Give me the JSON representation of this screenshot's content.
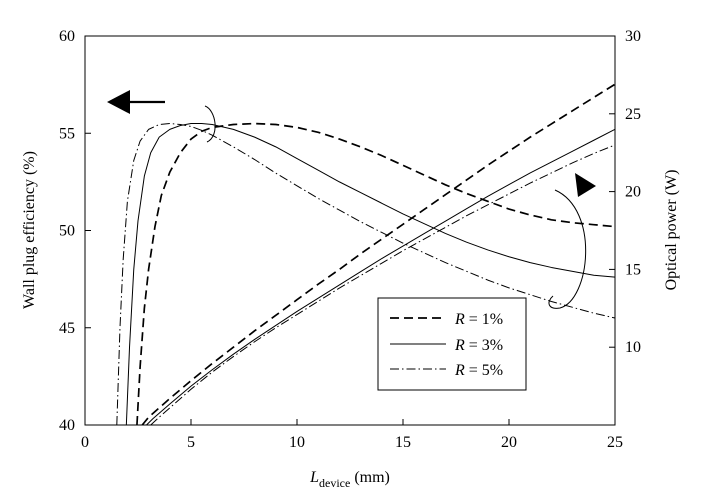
{
  "chart_data": {
    "type": "line",
    "xlabel": {
      "main": "L",
      "sub": "device",
      "unit": " (mm)"
    },
    "ylabel_left": "Wall plug efficiency (%)",
    "ylabel_right": "Optical power (W)",
    "xlim": [
      0,
      25
    ],
    "ylim_left": [
      40,
      60
    ],
    "ylim_right": [
      5,
      30
    ],
    "x_ticks": [
      "0",
      "5",
      "10",
      "15",
      "20",
      "25"
    ],
    "y_left_ticks": [
      "40",
      "45",
      "50",
      "55",
      "60"
    ],
    "y_right_ticks": [
      "10",
      "15",
      "20",
      "25",
      "30"
    ],
    "grid": false,
    "legend_position": "bottom-center",
    "legend": [
      {
        "prefix": "R",
        "text": " = 1%"
      },
      {
        "prefix": "R",
        "text": " = 3%"
      },
      {
        "prefix": "R",
        "text": " = 5%"
      }
    ],
    "series": [
      {
        "legend_index": 0,
        "style": "dashed",
        "axis": "left",
        "x": [
          2.45,
          2.6,
          2.8,
          3.0,
          3.3,
          3.6,
          4.0,
          4.5,
          5.0,
          5.5,
          6.0,
          7.0,
          8.0,
          9.0,
          10.0,
          11.0,
          12.0,
          13.0,
          14.0,
          15.0,
          16.0,
          17.0,
          18.0,
          19.0,
          20.0,
          21.0,
          22.0,
          23.0,
          24.0,
          25.0
        ],
        "y": [
          40.0,
          43.0,
          46.0,
          48.0,
          50.2,
          51.8,
          53.0,
          54.0,
          54.7,
          55.1,
          55.3,
          55.45,
          55.5,
          55.45,
          55.3,
          55.05,
          54.7,
          54.3,
          53.85,
          53.35,
          52.85,
          52.35,
          51.9,
          51.5,
          51.1,
          50.8,
          50.55,
          50.4,
          50.3,
          50.2
        ]
      },
      {
        "legend_index": 1,
        "style": "solid",
        "axis": "left",
        "x": [
          1.95,
          2.1,
          2.3,
          2.5,
          2.8,
          3.1,
          3.5,
          4.0,
          4.5,
          5.0,
          5.5,
          6.0,
          7.0,
          8.0,
          9.0,
          10.0,
          11.0,
          12.0,
          13.0,
          14.0,
          15.0,
          16.0,
          17.0,
          18.0,
          19.0,
          20.0,
          21.0,
          22.0,
          23.0,
          24.0,
          25.0
        ],
        "y": [
          40.0,
          44.0,
          48.0,
          50.5,
          52.8,
          54.0,
          54.8,
          55.2,
          55.4,
          55.5,
          55.5,
          55.45,
          55.2,
          54.8,
          54.3,
          53.7,
          53.1,
          52.5,
          51.95,
          51.4,
          50.85,
          50.35,
          49.85,
          49.4,
          49.0,
          48.65,
          48.35,
          48.1,
          47.9,
          47.7,
          47.6
        ]
      },
      {
        "legend_index": 2,
        "style": "dashdot",
        "axis": "left",
        "x": [
          1.5,
          1.65,
          1.8,
          2.0,
          2.3,
          2.6,
          3.0,
          3.5,
          4.0,
          4.5,
          5.0,
          5.5,
          6.0,
          7.0,
          8.0,
          9.0,
          10.0,
          11.0,
          12.0,
          13.0,
          14.0,
          15.0,
          16.0,
          17.0,
          18.0,
          19.0,
          20.0,
          21.0,
          22.0,
          23.0,
          24.0,
          25.0
        ],
        "y": [
          40.0,
          45.0,
          48.5,
          51.5,
          53.6,
          54.6,
          55.2,
          55.45,
          55.5,
          55.45,
          55.35,
          55.15,
          54.9,
          54.3,
          53.65,
          52.95,
          52.3,
          51.65,
          51.05,
          50.45,
          49.9,
          49.35,
          48.85,
          48.35,
          47.9,
          47.45,
          47.05,
          46.7,
          46.35,
          46.05,
          45.75,
          45.5
        ]
      },
      {
        "legend_index": 0,
        "style": "dashed",
        "axis": "right",
        "x": [
          2.7,
          3.0,
          4.0,
          5.0,
          6.0,
          7.0,
          8.0,
          9.0,
          10.0,
          11.0,
          12.0,
          13.0,
          14.0,
          15.0,
          16.0,
          17.0,
          18.0,
          19.0,
          20.0,
          21.0,
          22.0,
          23.0,
          24.0,
          25.0
        ],
        "y": [
          5.0,
          5.5,
          6.7,
          7.85,
          8.95,
          10.0,
          11.05,
          12.05,
          13.05,
          14.05,
          15.0,
          16.0,
          16.95,
          17.9,
          18.85,
          19.8,
          20.75,
          21.7,
          22.6,
          23.5,
          24.35,
          25.2,
          26.05,
          26.9
        ]
      },
      {
        "legend_index": 1,
        "style": "solid",
        "axis": "right",
        "x": [
          2.9,
          3.2,
          4.0,
          5.0,
          6.0,
          7.0,
          8.0,
          9.0,
          10.0,
          11.0,
          12.0,
          13.0,
          14.0,
          15.0,
          16.0,
          17.0,
          18.0,
          19.0,
          20.0,
          21.0,
          22.0,
          23.0,
          24.0,
          25.0
        ],
        "y": [
          5.0,
          5.4,
          6.35,
          7.5,
          8.55,
          9.55,
          10.5,
          11.4,
          12.3,
          13.15,
          14.0,
          14.85,
          15.7,
          16.5,
          17.3,
          18.1,
          18.9,
          19.7,
          20.45,
          21.2,
          21.9,
          22.6,
          23.3,
          24.0
        ]
      },
      {
        "legend_index": 2,
        "style": "dashdot",
        "axis": "right",
        "x": [
          3.1,
          3.5,
          4.0,
          5.0,
          6.0,
          7.0,
          8.0,
          9.0,
          10.0,
          11.0,
          12.0,
          13.0,
          14.0,
          15.0,
          16.0,
          17.0,
          18.0,
          19.0,
          20.0,
          21.0,
          22.0,
          23.0,
          24.0,
          25.0
        ],
        "y": [
          5.0,
          5.5,
          6.1,
          7.3,
          8.4,
          9.4,
          10.35,
          11.25,
          12.1,
          12.95,
          13.8,
          14.6,
          15.4,
          16.2,
          16.95,
          17.7,
          18.45,
          19.15,
          19.85,
          20.55,
          21.2,
          21.85,
          22.45,
          23.0
        ]
      }
    ]
  }
}
